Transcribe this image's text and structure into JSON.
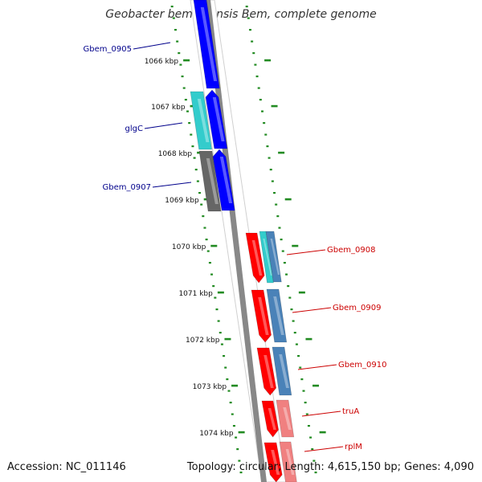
{
  "title": "Geobacter bemidjiensis Bem, complete genome",
  "footer": {
    "accession": "Accession: NC_011146",
    "topology": "Topology: circular; Length: 4,615,150 bp; Genes: 4,090"
  },
  "colors": {
    "blue": "#0000ff",
    "cyan": "#33cccc",
    "gray": "#666666",
    "red": "#ff0000",
    "steelblue": "#4a82b8",
    "pink": "#f08080",
    "tick": "#228b22",
    "label_left": "#00008b",
    "label_right": "#cc0000"
  },
  "scale_labels": [
    "1066 kbp",
    "1067 kbp",
    "1068 kbp",
    "1069 kbp",
    "1070 kbp",
    "1071 kbp",
    "1072 kbp",
    "1073 kbp",
    "1074 kbp"
  ],
  "gene_labels_left": [
    "Gbem_0905",
    "glgC",
    "Gbem_0907"
  ],
  "gene_labels_right": [
    "Gbem_0908",
    "Gbem_0909",
    "Gbem_0910",
    "truA",
    "rplM"
  ]
}
